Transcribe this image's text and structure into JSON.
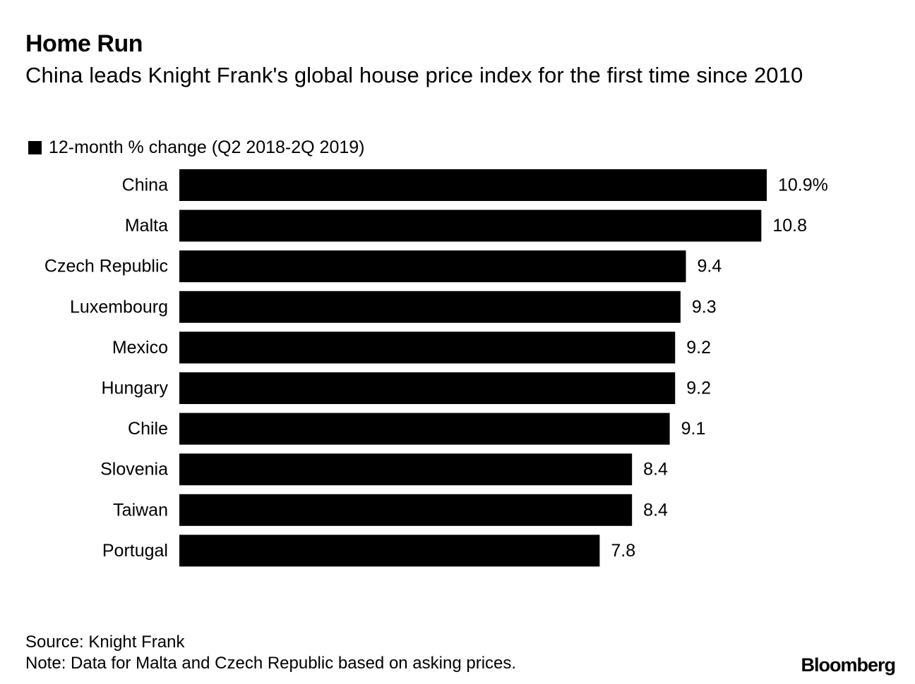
{
  "chart_data": {
    "type": "bar",
    "orientation": "horizontal",
    "title": "Home Run",
    "subtitle": "China leads Knight Frank's global house price index for the first time since 2010",
    "legend": [
      "12-month % change (Q2 2018-2Q 2019)"
    ],
    "categories": [
      "China",
      "Malta",
      "Czech Republic",
      "Luxembourg",
      "Mexico",
      "Hungary",
      "Chile",
      "Slovenia",
      "Taiwan",
      "Portugal"
    ],
    "values": [
      10.9,
      10.8,
      9.4,
      9.3,
      9.2,
      9.2,
      9.1,
      8.4,
      8.4,
      7.8
    ],
    "value_labels": [
      "10.9%",
      "10.8",
      "9.4",
      "9.3",
      "9.2",
      "9.2",
      "9.1",
      "8.4",
      "8.4",
      "7.8"
    ],
    "xlim": [
      0,
      10.9
    ],
    "bar_color": "#000000",
    "grid": false
  },
  "footer": {
    "source": "Source: Knight Frank",
    "note": "Note: Data for Malta and Czech Republic based on asking prices.",
    "brand": "Bloomberg"
  }
}
